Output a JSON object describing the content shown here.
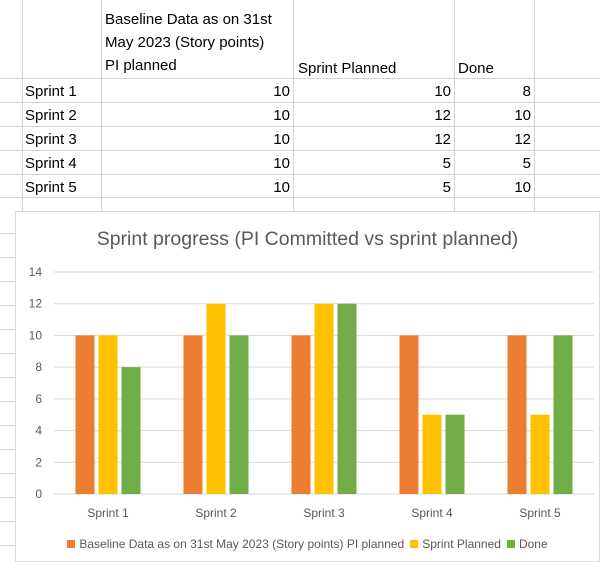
{
  "table": {
    "header": {
      "baseline_line1": "Baseline Data as on 31st",
      "baseline_line2": "May 2023 (Story points)",
      "baseline_line3": "PI planned",
      "sprint_planned": "Sprint Planned",
      "done": "Done"
    },
    "rows": [
      {
        "label": "Sprint 1",
        "baseline": "10",
        "planned": "10",
        "done": "8"
      },
      {
        "label": "Sprint 2",
        "baseline": "10",
        "planned": "12",
        "done": "10"
      },
      {
        "label": "Sprint 3",
        "baseline": "10",
        "planned": "12",
        "done": "12"
      },
      {
        "label": "Sprint 4",
        "baseline": "10",
        "planned": "5",
        "done": "5"
      },
      {
        "label": "Sprint 5",
        "baseline": "10",
        "planned": "5",
        "done": "10"
      }
    ]
  },
  "chart_data": {
    "type": "bar",
    "title": "Sprint progress (PI Committed vs sprint planned)",
    "categories": [
      "Sprint 1",
      "Sprint 2",
      "Sprint 3",
      "Sprint 4",
      "Sprint 5"
    ],
    "series": [
      {
        "name": "Baseline Data as on 31st May 2023 (Story points) PI planned",
        "values": [
          10,
          10,
          10,
          10,
          10
        ],
        "color": "#ED7D31"
      },
      {
        "name": "Sprint Planned",
        "values": [
          10,
          12,
          12,
          5,
          5
        ],
        "color": "#FFC000"
      },
      {
        "name": "Done",
        "values": [
          8,
          10,
          12,
          5,
          10
        ],
        "color": "#70AD47"
      }
    ],
    "ylim": [
      0,
      14
    ],
    "yticks": [
      "0",
      "2",
      "4",
      "6",
      "8",
      "10",
      "12",
      "14"
    ],
    "grid": true,
    "legend": "bottom",
    "xlabel": "",
    "ylabel": ""
  }
}
